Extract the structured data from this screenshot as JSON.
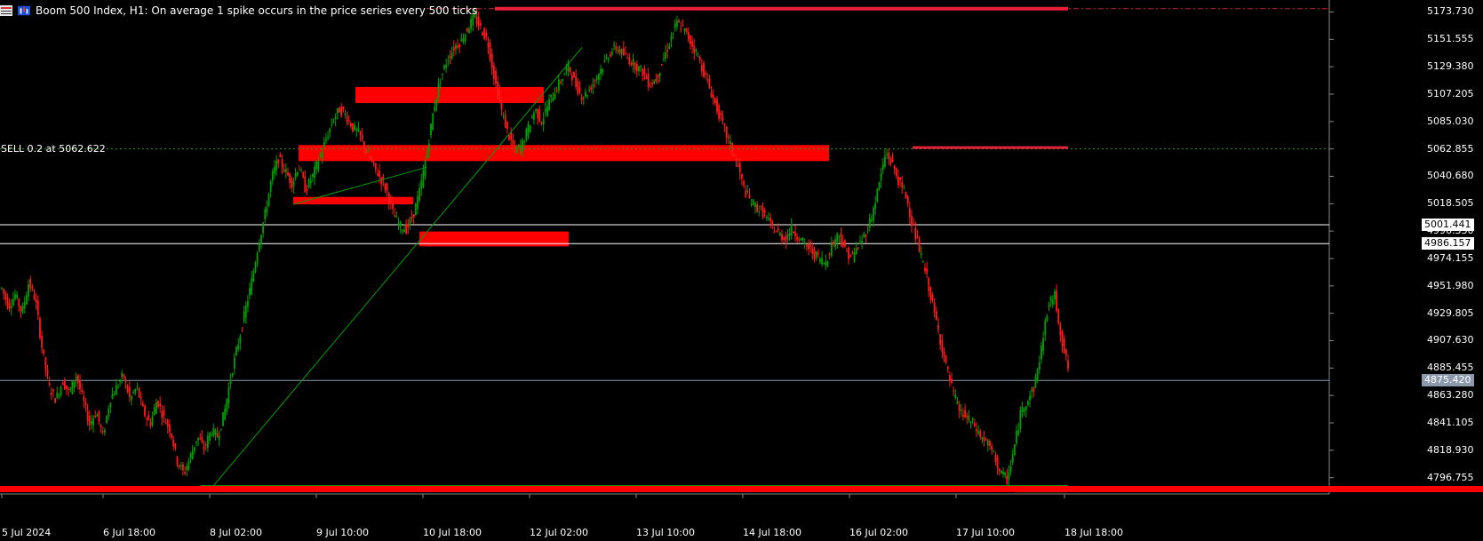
{
  "header": {
    "title": "Boom 500 Index, H1:  On average 1 spike occurs in the price series every 500 ticks"
  },
  "position_label": "SELL 0.2 at 5062.622",
  "price_axis": {
    "ticks": [
      "5173.730",
      "5151.555",
      "5129.380",
      "5107.205",
      "5085.030",
      "5062.855",
      "5040.680",
      "5018.505",
      "4996.330",
      "4974.155",
      "4951.980",
      "4929.805",
      "4907.630",
      "4885.455",
      "4863.280",
      "4841.105",
      "4818.930",
      "4796.755"
    ],
    "tags": [
      {
        "name": "level-5001",
        "value": "5001.441",
        "bg": "#ffffff",
        "fg": "#000000"
      },
      {
        "name": "level-4986",
        "value": "4986.157",
        "bg": "#ffffff",
        "fg": "#000000"
      },
      {
        "name": "current-price",
        "value": "4875.420",
        "bg": "#8c99ad",
        "fg": "#ffffff"
      }
    ]
  },
  "time_axis": {
    "ticks": [
      "5 Jul 2024",
      "6 Jul 18:00",
      "8 Jul 02:00",
      "9 Jul 10:00",
      "10 Jul 18:00",
      "12 Jul 02:00",
      "13 Jul 10:00",
      "14 Jul 18:00",
      "16 Jul 02:00",
      "17 Jul 10:00",
      "18 Jul 18:00"
    ]
  },
  "colors": {
    "bull": "#00a000",
    "bear": "#ff1a1a",
    "zone": "#ff0000",
    "highlight": "#e8203a",
    "support": "#0a8a0a",
    "grid": "#ffffff"
  },
  "chart_data": {
    "type": "candlestick",
    "symbol": "Boom 500 Index",
    "timeframe": "H1",
    "y_range": [
      4785,
      5182
    ],
    "position": {
      "side": "SELL",
      "volume": 0.2,
      "price": 5062.622
    },
    "horizontal_levels": [
      5001.441,
      4986.157,
      4875.42,
      5062.855,
      5176.4
    ],
    "path": [
      4950,
      4935,
      4945,
      4930,
      4955,
      4940,
      4900,
      4870,
      4860,
      4875,
      4865,
      4880,
      4860,
      4840,
      4850,
      4830,
      4860,
      4870,
      4880,
      4860,
      4870,
      4850,
      4840,
      4860,
      4845,
      4835,
      4810,
      4800,
      4815,
      4830,
      4820,
      4835,
      4830,
      4850,
      4880,
      4905,
      4930,
      4955,
      4985,
      5010,
      5040,
      5055,
      5045,
      5035,
      5050,
      5030,
      5040,
      5055,
      5070,
      5085,
      5095,
      5090,
      5080,
      5075,
      5060,
      5050,
      5040,
      5030,
      5010,
      5000,
      4998,
      5010,
      5030,
      5060,
      5095,
      5120,
      5135,
      5145,
      5150,
      5160,
      5170,
      5160,
      5150,
      5120,
      5095,
      5075,
      5062,
      5065,
      5080,
      5095,
      5085,
      5100,
      5110,
      5120,
      5130,
      5115,
      5105,
      5110,
      5120,
      5130,
      5140,
      5145,
      5140,
      5135,
      5130,
      5125,
      5115,
      5120,
      5135,
      5150,
      5165,
      5160,
      5150,
      5140,
      5125,
      5110,
      5095,
      5080,
      5065,
      5050,
      5030,
      5020,
      5015,
      5010,
      5000,
      4995,
      4990,
      4998,
      4992,
      4985,
      4980,
      4975,
      4970,
      4985,
      4995,
      4980,
      4975,
      4985,
      4995,
      5010,
      5035,
      5060,
      5050,
      5035,
      5025,
      5000,
      4980,
      4960,
      4935,
      4910,
      4885,
      4865,
      4850,
      4845,
      4840,
      4830,
      4825,
      4815,
      4800,
      4795,
      4820,
      4850,
      4860,
      4870,
      4900,
      4935,
      4945,
      4910,
      4885
    ]
  }
}
